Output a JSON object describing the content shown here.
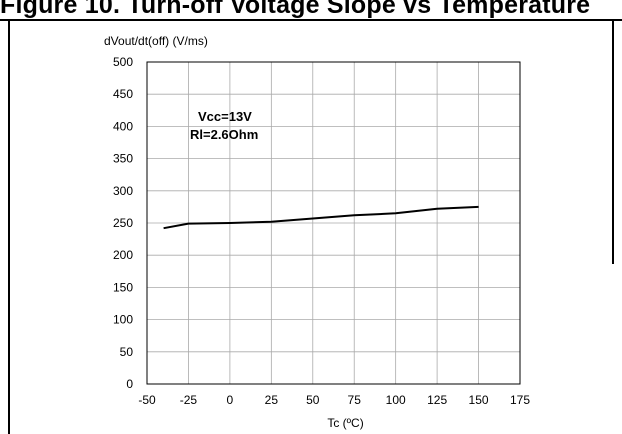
{
  "page": {
    "heading": "Figure 10. Turn-off Voltage Slope vs Temperature"
  },
  "chart_data": {
    "type": "line",
    "ylabel": "dVout/dt(off) (V/ms)",
    "xlabel": "Tc (ºC)",
    "xlim": [
      -50,
      175
    ],
    "ylim": [
      0,
      500
    ],
    "xticks": [
      -50,
      -25,
      0,
      25,
      50,
      75,
      100,
      125,
      150,
      175
    ],
    "yticks": [
      0,
      50,
      100,
      150,
      200,
      250,
      300,
      350,
      400,
      450,
      500
    ],
    "grid": true,
    "annotations": [
      "Vcc=13V",
      "Rl=2.6Ohm"
    ],
    "series": [
      {
        "x": [
          -40,
          -25,
          0,
          25,
          50,
          75,
          100,
          125,
          150
        ],
        "y": [
          242,
          249,
          250,
          252,
          257,
          262,
          265,
          272,
          275
        ],
        "color": "#000000"
      }
    ]
  }
}
